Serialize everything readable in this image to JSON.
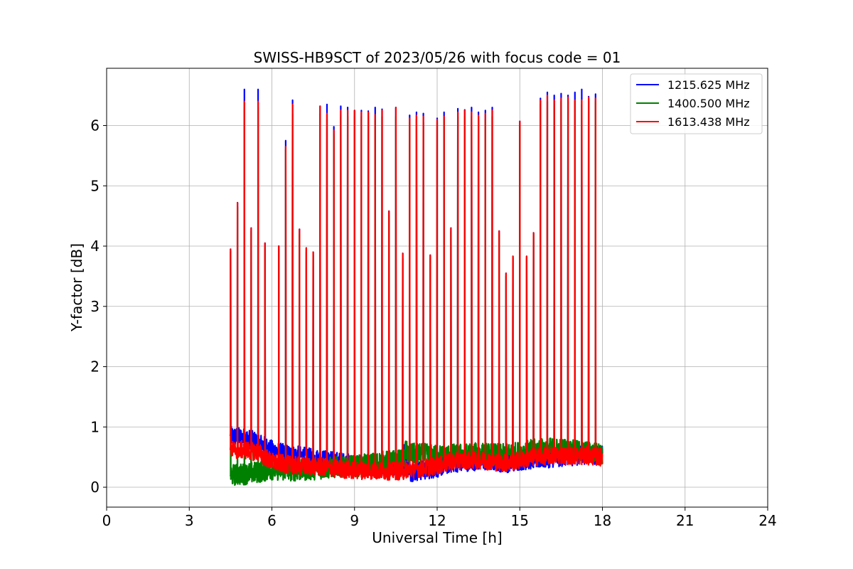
{
  "chart_data": {
    "type": "line",
    "title": "SWISS-HB9SCT of 2023/05/26 with focus code = 01",
    "xlabel": "Universal Time [h]",
    "ylabel": "Y-factor [dB]",
    "xlim": [
      0,
      24
    ],
    "ylim": [
      -0.33,
      6.95
    ],
    "xticks": [
      0,
      3,
      6,
      9,
      12,
      15,
      18,
      21,
      24
    ],
    "yticks": [
      0,
      1,
      2,
      3,
      4,
      5,
      6
    ],
    "grid": true,
    "legend_position": "top-right",
    "data_range_x": [
      4.5,
      18.0
    ],
    "series": [
      {
        "name": "1215.625 MHz",
        "color": "#0000ff"
      },
      {
        "name": "1400.500 MHz",
        "color": "#008000"
      },
      {
        "name": "1613.438 MHz",
        "color": "#ff0000"
      }
    ],
    "background_baseline": {
      "x": [
        4.5,
        5.0,
        5.5,
        6.0,
        6.5,
        7.0,
        7.5,
        8.0,
        8.5,
        9.0,
        9.5,
        10.0,
        10.5,
        10.8,
        10.81,
        11.0,
        11.5,
        12.0,
        12.5,
        13.0,
        13.5,
        14.0,
        14.5,
        15.0,
        15.5,
        16.0,
        16.5,
        17.0,
        17.5,
        18.0
      ],
      "blue": [
        0.85,
        0.82,
        0.75,
        0.62,
        0.55,
        0.52,
        0.48,
        0.45,
        0.42,
        0.38,
        0.36,
        0.35,
        0.35,
        0.35,
        0.65,
        0.25,
        0.28,
        0.32,
        0.4,
        0.42,
        0.44,
        0.43,
        0.4,
        0.44,
        0.46,
        0.48,
        0.5,
        0.52,
        0.55,
        0.52
      ],
      "green": [
        0.2,
        0.22,
        0.25,
        0.3,
        0.28,
        0.28,
        0.3,
        0.32,
        0.34,
        0.35,
        0.38,
        0.42,
        0.44,
        0.45,
        0.62,
        0.55,
        0.55,
        0.52,
        0.54,
        0.55,
        0.56,
        0.55,
        0.54,
        0.58,
        0.62,
        0.64,
        0.64,
        0.6,
        0.58,
        0.55
      ],
      "red": [
        0.62,
        0.62,
        0.58,
        0.42,
        0.38,
        0.35,
        0.35,
        0.33,
        0.3,
        0.28,
        0.28,
        0.27,
        0.27,
        0.27,
        0.3,
        0.3,
        0.32,
        0.36,
        0.42,
        0.45,
        0.45,
        0.43,
        0.4,
        0.45,
        0.5,
        0.52,
        0.53,
        0.52,
        0.52,
        0.5
      ]
    },
    "peaks": [
      {
        "x": 4.5,
        "blue": 3.95,
        "green": 3.9,
        "red": 3.95
      },
      {
        "x": 4.75,
        "blue": 4.72,
        "green": 4.65,
        "red": 4.72
      },
      {
        "x": 5.0,
        "blue": 6.6,
        "green": 6.3,
        "red": 6.4
      },
      {
        "x": 5.25,
        "blue": 4.3,
        "green": 4.25,
        "red": 4.3
      },
      {
        "x": 5.5,
        "blue": 6.6,
        "green": 6.3,
        "red": 6.4
      },
      {
        "x": 5.75,
        "blue": 4.05,
        "green": 4.0,
        "red": 4.05
      },
      {
        "x": 6.25,
        "blue": 4.0,
        "green": 3.95,
        "red": 4.0
      },
      {
        "x": 6.5,
        "blue": 5.75,
        "green": 5.6,
        "red": 5.65
      },
      {
        "x": 6.75,
        "blue": 6.42,
        "green": 6.2,
        "red": 6.35
      },
      {
        "x": 7.0,
        "blue": 4.28,
        "green": 4.2,
        "red": 4.28
      },
      {
        "x": 7.25,
        "blue": 3.97,
        "green": 3.9,
        "red": 3.97
      },
      {
        "x": 7.5,
        "blue": 3.9,
        "green": 3.85,
        "red": 3.9
      },
      {
        "x": 7.75,
        "blue": 6.32,
        "green": 6.2,
        "red": 6.32
      },
      {
        "x": 8.0,
        "blue": 6.35,
        "green": 6.1,
        "red": 6.2
      },
      {
        "x": 8.25,
        "blue": 5.98,
        "green": 5.85,
        "red": 5.92
      },
      {
        "x": 8.5,
        "blue": 6.32,
        "green": 6.15,
        "red": 6.25
      },
      {
        "x": 8.75,
        "blue": 6.3,
        "green": 6.15,
        "red": 6.25
      },
      {
        "x": 9.0,
        "blue": 6.25,
        "green": 6.15,
        "red": 6.25
      },
      {
        "x": 9.25,
        "blue": 6.25,
        "green": 6.15,
        "red": 6.22
      },
      {
        "x": 9.5,
        "blue": 6.24,
        "green": 6.15,
        "red": 6.22
      },
      {
        "x": 9.75,
        "blue": 6.3,
        "green": 6.1,
        "red": 6.18
      },
      {
        "x": 10.0,
        "blue": 6.27,
        "green": 6.15,
        "red": 6.25
      },
      {
        "x": 10.25,
        "blue": 4.58,
        "green": 4.5,
        "red": 4.58
      },
      {
        "x": 10.5,
        "blue": 6.3,
        "green": 6.15,
        "red": 6.3
      },
      {
        "x": 10.75,
        "blue": 3.88,
        "green": 3.8,
        "red": 3.88
      },
      {
        "x": 11.0,
        "blue": 6.17,
        "green": 6.05,
        "red": 6.12
      },
      {
        "x": 11.25,
        "blue": 6.22,
        "green": 6.1,
        "red": 6.17
      },
      {
        "x": 11.5,
        "blue": 6.2,
        "green": 6.05,
        "red": 6.15
      },
      {
        "x": 11.75,
        "blue": 3.85,
        "green": 3.8,
        "red": 3.85
      },
      {
        "x": 12.0,
        "blue": 6.12,
        "green": 6.05,
        "red": 6.1
      },
      {
        "x": 12.25,
        "blue": 6.22,
        "green": 6.1,
        "red": 6.15
      },
      {
        "x": 12.5,
        "blue": 4.3,
        "green": 4.25,
        "red": 4.3
      },
      {
        "x": 12.75,
        "blue": 6.28,
        "green": 6.15,
        "red": 6.22
      },
      {
        "x": 13.0,
        "blue": 6.26,
        "green": 6.15,
        "red": 6.25
      },
      {
        "x": 13.25,
        "blue": 6.3,
        "green": 6.15,
        "red": 6.22
      },
      {
        "x": 13.5,
        "blue": 6.22,
        "green": 6.1,
        "red": 6.17
      },
      {
        "x": 13.75,
        "blue": 6.25,
        "green": 6.1,
        "red": 6.2
      },
      {
        "x": 14.0,
        "blue": 6.3,
        "green": 6.15,
        "red": 6.25
      },
      {
        "x": 14.25,
        "blue": 4.25,
        "green": 4.2,
        "red": 4.25
      },
      {
        "x": 14.5,
        "blue": 3.55,
        "green": 3.5,
        "red": 3.55
      },
      {
        "x": 14.75,
        "blue": 3.83,
        "green": 3.8,
        "red": 3.83
      },
      {
        "x": 15.0,
        "blue": 6.07,
        "green": 6.0,
        "red": 6.07
      },
      {
        "x": 15.25,
        "blue": 3.83,
        "green": 3.8,
        "red": 3.83
      },
      {
        "x": 15.5,
        "blue": 4.22,
        "green": 4.2,
        "red": 4.22
      },
      {
        "x": 15.75,
        "blue": 6.45,
        "green": 6.35,
        "red": 6.42
      },
      {
        "x": 16.0,
        "blue": 6.55,
        "green": 6.4,
        "red": 6.5
      },
      {
        "x": 16.25,
        "blue": 6.5,
        "green": 6.35,
        "red": 6.42
      },
      {
        "x": 16.5,
        "blue": 6.53,
        "green": 6.4,
        "red": 6.45
      },
      {
        "x": 16.75,
        "blue": 6.5,
        "green": 6.4,
        "red": 6.47
      },
      {
        "x": 17.0,
        "blue": 6.55,
        "green": 6.4,
        "red": 6.42
      },
      {
        "x": 17.25,
        "blue": 6.6,
        "green": 6.35,
        "red": 6.42
      },
      {
        "x": 17.5,
        "blue": 6.48,
        "green": 6.4,
        "red": 6.47
      },
      {
        "x": 17.75,
        "blue": 6.52,
        "green": 6.4,
        "red": 6.45
      }
    ]
  }
}
